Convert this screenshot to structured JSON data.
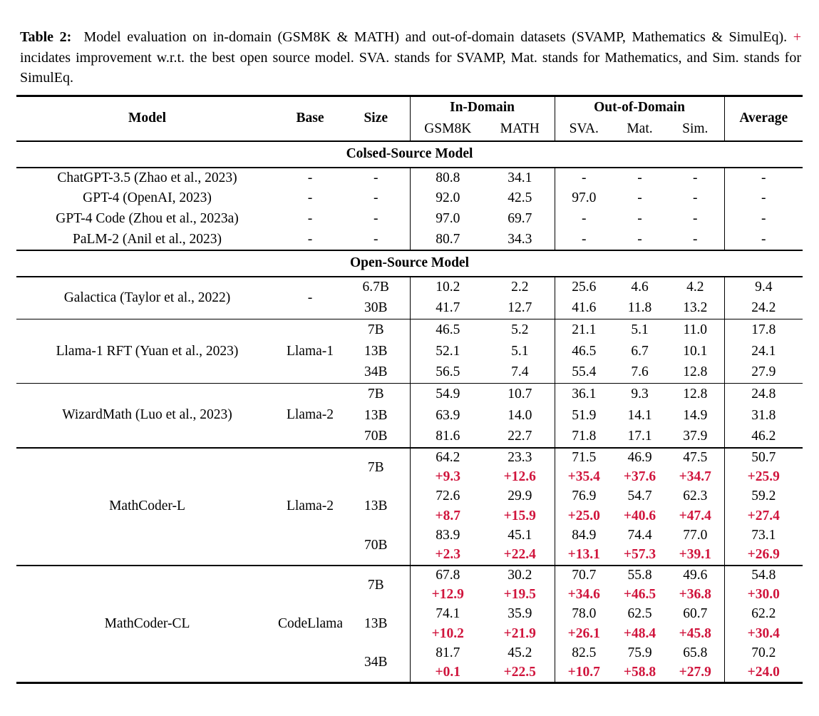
{
  "caption": {
    "label": "Table 2:",
    "text_before_plus": "Model evaluation on in-domain (GSM8K & MATH) and out-of-domain datasets (SVAMP, Mathematics & SimulEq).",
    "plus": "+",
    "text_after_plus": "incidates improvement w.r.t. the best open source model. SVA. stands for SVAMP, Mat. stands for Mathematics, and Sim. stands for SimulEq."
  },
  "colors": {
    "delta_red": "#d0143c"
  },
  "table": {
    "headers": {
      "model": "Model",
      "base": "Base",
      "size": "Size",
      "in_domain": "In-Domain",
      "out_domain": "Out-of-Domain",
      "average": "Average",
      "gsm8k": "GSM8K",
      "math": "MATH",
      "sva": "SVA.",
      "mat": "Mat.",
      "sim": "Sim."
    },
    "sections": [
      {
        "title": "Colsed-Source Model",
        "groups": [
          {
            "model": "ChatGPT-3.5 (Zhao et al., 2023)",
            "base": "-",
            "rows": [
              {
                "size": "-",
                "values": [
                  "80.8",
                  "34.1",
                  "-",
                  "-",
                  "-",
                  "-"
                ]
              }
            ]
          },
          {
            "model": "GPT-4 (OpenAI, 2023)",
            "base": "-",
            "rows": [
              {
                "size": "-",
                "values": [
                  "92.0",
                  "42.5",
                  "97.0",
                  "-",
                  "-",
                  "-"
                ]
              }
            ]
          },
          {
            "model": "GPT-4 Code (Zhou et al., 2023a)",
            "base": "-",
            "rows": [
              {
                "size": "-",
                "values": [
                  "97.0",
                  "69.7",
                  "-",
                  "-",
                  "-",
                  "-"
                ]
              }
            ]
          },
          {
            "model": "PaLM-2 (Anil et al., 2023)",
            "base": "-",
            "rows": [
              {
                "size": "-",
                "values": [
                  "80.7",
                  "34.3",
                  "-",
                  "-",
                  "-",
                  "-"
                ]
              }
            ]
          }
        ]
      },
      {
        "title": "Open-Source Model",
        "groups": [
          {
            "model": "Galactica (Taylor et al., 2022)",
            "base": "-",
            "rows": [
              {
                "size": "6.7B",
                "values": [
                  "10.2",
                  "2.2",
                  "25.6",
                  "4.6",
                  "4.2",
                  "9.4"
                ]
              },
              {
                "size": "30B",
                "values": [
                  "41.7",
                  "12.7",
                  "41.6",
                  "11.8",
                  "13.2",
                  "24.2"
                ]
              }
            ]
          },
          {
            "model": "Llama-1 RFT (Yuan et al., 2023)",
            "base": "Llama-1",
            "rows": [
              {
                "size": "7B",
                "values": [
                  "46.5",
                  "5.2",
                  "21.1",
                  "5.1",
                  "11.0",
                  "17.8"
                ]
              },
              {
                "size": "13B",
                "values": [
                  "52.1",
                  "5.1",
                  "46.5",
                  "6.7",
                  "10.1",
                  "24.1"
                ]
              },
              {
                "size": "34B",
                "values": [
                  "56.5",
                  "7.4",
                  "55.4",
                  "7.6",
                  "12.8",
                  "27.9"
                ]
              }
            ]
          },
          {
            "model": "WizardMath (Luo et al., 2023)",
            "base": "Llama-2",
            "rows": [
              {
                "size": "7B",
                "values": [
                  "54.9",
                  "10.7",
                  "36.1",
                  "9.3",
                  "12.8",
                  "24.8"
                ]
              },
              {
                "size": "13B",
                "values": [
                  "63.9",
                  "14.0",
                  "51.9",
                  "14.1",
                  "14.9",
                  "31.8"
                ]
              },
              {
                "size": "70B",
                "values": [
                  "81.6",
                  "22.7",
                  "71.8",
                  "17.1",
                  "37.9",
                  "46.2"
                ]
              }
            ]
          },
          {
            "model": "MathCoder-L",
            "base": "Llama-2",
            "rows": [
              {
                "size": "7B",
                "values": [
                  "64.2",
                  "23.3",
                  "71.5",
                  "46.9",
                  "47.5",
                  "50.7"
                ],
                "delta": [
                  "+9.3",
                  "+12.6",
                  "+35.4",
                  "+37.6",
                  "+34.7",
                  "+25.9"
                ]
              },
              {
                "size": "13B",
                "values": [
                  "72.6",
                  "29.9",
                  "76.9",
                  "54.7",
                  "62.3",
                  "59.2"
                ],
                "delta": [
                  "+8.7",
                  "+15.9",
                  "+25.0",
                  "+40.6",
                  "+47.4",
                  "+27.4"
                ]
              },
              {
                "size": "70B",
                "values": [
                  "83.9",
                  "45.1",
                  "84.9",
                  "74.4",
                  "77.0",
                  "73.1"
                ],
                "delta": [
                  "+2.3",
                  "+22.4",
                  "+13.1",
                  "+57.3",
                  "+39.1",
                  "+26.9"
                ]
              }
            ]
          },
          {
            "model": "MathCoder-CL",
            "base": "CodeLlama",
            "rows": [
              {
                "size": "7B",
                "values": [
                  "67.8",
                  "30.2",
                  "70.7",
                  "55.8",
                  "49.6",
                  "54.8"
                ],
                "delta": [
                  "+12.9",
                  "+19.5",
                  "+34.6",
                  "+46.5",
                  "+36.8",
                  "+30.0"
                ]
              },
              {
                "size": "13B",
                "values": [
                  "74.1",
                  "35.9",
                  "78.0",
                  "62.5",
                  "60.7",
                  "62.2"
                ],
                "delta": [
                  "+10.2",
                  "+21.9",
                  "+26.1",
                  "+48.4",
                  "+45.8",
                  "+30.4"
                ]
              },
              {
                "size": "34B",
                "values": [
                  "81.7",
                  "45.2",
                  "82.5",
                  "75.9",
                  "65.8",
                  "70.2"
                ],
                "delta": [
                  "+0.1",
                  "+22.5",
                  "+10.7",
                  "+58.8",
                  "+27.9",
                  "+24.0"
                ]
              }
            ]
          }
        ]
      }
    ]
  }
}
